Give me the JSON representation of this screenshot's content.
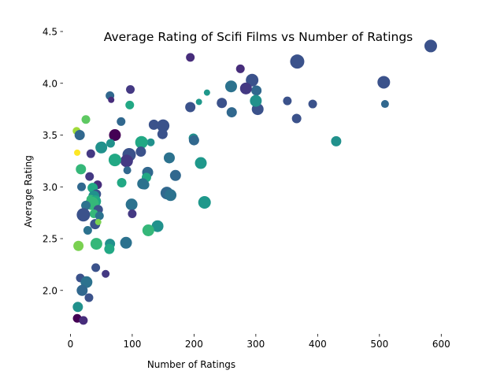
{
  "chart_data": {
    "type": "scatter",
    "title": "Average Rating of Scifi Films vs Number of Ratings",
    "xlabel": "Number of Ratings",
    "ylabel": "Average Rating",
    "xlim": [
      -12,
      620
    ],
    "ylim": [
      1.58,
      4.5
    ],
    "xticks": [
      0,
      100,
      200,
      300,
      400,
      500,
      600
    ],
    "yticks": [
      2.0,
      2.5,
      3.0,
      3.5,
      4.0,
      4.5
    ],
    "ytick_labels": [
      "2.0",
      "2.5",
      "3.0",
      "3.5",
      "4.0",
      "4.5"
    ],
    "grid": false,
    "legend": "none",
    "encoding": "marker size and color vary per point (viridis colormap)",
    "points": [
      {
        "x": 583,
        "y": 4.36,
        "size": 16,
        "color": "#3b528b"
      },
      {
        "x": 507,
        "y": 4.01,
        "size": 16,
        "color": "#3b528b"
      },
      {
        "x": 509,
        "y": 3.8,
        "size": 10,
        "color": "#31688e"
      },
      {
        "x": 430,
        "y": 3.44,
        "size": 13,
        "color": "#21918c"
      },
      {
        "x": 392,
        "y": 3.8,
        "size": 11,
        "color": "#3b528b"
      },
      {
        "x": 367,
        "y": 4.21,
        "size": 18,
        "color": "#3b528b"
      },
      {
        "x": 366,
        "y": 3.66,
        "size": 12,
        "color": "#3b528b"
      },
      {
        "x": 351,
        "y": 3.83,
        "size": 11,
        "color": "#3b528b"
      },
      {
        "x": 303,
        "y": 3.75,
        "size": 15,
        "color": "#3b528b"
      },
      {
        "x": 301,
        "y": 3.93,
        "size": 13,
        "color": "#31688e"
      },
      {
        "x": 300,
        "y": 3.83,
        "size": 15,
        "color": "#21918c"
      },
      {
        "x": 294,
        "y": 4.03,
        "size": 16,
        "color": "#3b528b"
      },
      {
        "x": 284,
        "y": 3.95,
        "size": 15,
        "color": "#443983"
      },
      {
        "x": 275,
        "y": 4.14,
        "size": 11,
        "color": "#472d7b"
      },
      {
        "x": 260,
        "y": 3.97,
        "size": 15,
        "color": "#2c728e"
      },
      {
        "x": 261,
        "y": 3.72,
        "size": 13,
        "color": "#31688e"
      },
      {
        "x": 245,
        "y": 3.81,
        "size": 13,
        "color": "#3b528b"
      },
      {
        "x": 221,
        "y": 3.91,
        "size": 8,
        "color": "#1f988b"
      },
      {
        "x": 208,
        "y": 3.82,
        "size": 8,
        "color": "#1f988b"
      },
      {
        "x": 194,
        "y": 4.25,
        "size": 11,
        "color": "#472d7b"
      },
      {
        "x": 194,
        "y": 3.77,
        "size": 13,
        "color": "#3b528b"
      },
      {
        "x": 199,
        "y": 3.47,
        "size": 12,
        "color": "#21918c"
      },
      {
        "x": 200,
        "y": 3.45,
        "size": 13,
        "color": "#31688e"
      },
      {
        "x": 211,
        "y": 3.23,
        "size": 15,
        "color": "#1f988b"
      },
      {
        "x": 217,
        "y": 2.85,
        "size": 16,
        "color": "#1f988b"
      },
      {
        "x": 170,
        "y": 3.11,
        "size": 14,
        "color": "#31688e"
      },
      {
        "x": 160,
        "y": 3.28,
        "size": 14,
        "color": "#2c728e"
      },
      {
        "x": 156,
        "y": 2.94,
        "size": 16,
        "color": "#31688e"
      },
      {
        "x": 162,
        "y": 2.92,
        "size": 15,
        "color": "#2c728e"
      },
      {
        "x": 150,
        "y": 3.59,
        "size": 16,
        "color": "#3b528b"
      },
      {
        "x": 149,
        "y": 3.51,
        "size": 13,
        "color": "#3b528b"
      },
      {
        "x": 135,
        "y": 3.6,
        "size": 13,
        "color": "#3b528b"
      },
      {
        "x": 130,
        "y": 3.43,
        "size": 10,
        "color": "#21918c"
      },
      {
        "x": 141,
        "y": 2.62,
        "size": 15,
        "color": "#21918c"
      },
      {
        "x": 126,
        "y": 2.58,
        "size": 15,
        "color": "#35b779"
      },
      {
        "x": 115,
        "y": 3.43,
        "size": 16,
        "color": "#22a884"
      },
      {
        "x": 114,
        "y": 3.34,
        "size": 13,
        "color": "#3b528b"
      },
      {
        "x": 125,
        "y": 3.14,
        "size": 14,
        "color": "#31688e"
      },
      {
        "x": 123,
        "y": 3.09,
        "size": 12,
        "color": "#22a884"
      },
      {
        "x": 117,
        "y": 3.03,
        "size": 14,
        "color": "#2c728e"
      },
      {
        "x": 120,
        "y": 3.02,
        "size": 12,
        "color": "#2c728e"
      },
      {
        "x": 97,
        "y": 3.94,
        "size": 11,
        "color": "#443983"
      },
      {
        "x": 96,
        "y": 3.79,
        "size": 11,
        "color": "#22a884"
      },
      {
        "x": 82,
        "y": 3.63,
        "size": 11,
        "color": "#31688e"
      },
      {
        "x": 95,
        "y": 3.31,
        "size": 17,
        "color": "#3b528b"
      },
      {
        "x": 91,
        "y": 3.25,
        "size": 16,
        "color": "#443983"
      },
      {
        "x": 92,
        "y": 3.16,
        "size": 10,
        "color": "#31688e"
      },
      {
        "x": 99,
        "y": 2.83,
        "size": 15,
        "color": "#2c728e"
      },
      {
        "x": 100,
        "y": 2.74,
        "size": 11,
        "color": "#443983"
      },
      {
        "x": 90,
        "y": 2.46,
        "size": 15,
        "color": "#2c728e"
      },
      {
        "x": 83,
        "y": 3.04,
        "size": 12,
        "color": "#22a884"
      },
      {
        "x": 72,
        "y": 3.5,
        "size": 15,
        "color": "#440154"
      },
      {
        "x": 72,
        "y": 3.26,
        "size": 16,
        "color": "#22a884"
      },
      {
        "x": 64,
        "y": 3.88,
        "size": 11,
        "color": "#31688e"
      },
      {
        "x": 66,
        "y": 3.84,
        "size": 8,
        "color": "#472d7b"
      },
      {
        "x": 65,
        "y": 3.42,
        "size": 11,
        "color": "#21918c"
      },
      {
        "x": 50,
        "y": 3.38,
        "size": 15,
        "color": "#21918c"
      },
      {
        "x": 64,
        "y": 2.45,
        "size": 13,
        "color": "#21918c"
      },
      {
        "x": 63,
        "y": 2.4,
        "size": 13,
        "color": "#22a884"
      },
      {
        "x": 57,
        "y": 2.16,
        "size": 10,
        "color": "#443983"
      },
      {
        "x": 25,
        "y": 3.65,
        "size": 11,
        "color": "#5ec962"
      },
      {
        "x": 10,
        "y": 3.54,
        "size": 10,
        "color": "#a0da39"
      },
      {
        "x": 15,
        "y": 3.5,
        "size": 13,
        "color": "#31688e"
      },
      {
        "x": 11,
        "y": 3.33,
        "size": 8,
        "color": "#fde725"
      },
      {
        "x": 33,
        "y": 3.32,
        "size": 11,
        "color": "#443983"
      },
      {
        "x": 17,
        "y": 3.17,
        "size": 13,
        "color": "#35b779"
      },
      {
        "x": 31,
        "y": 3.1,
        "size": 11,
        "color": "#443983"
      },
      {
        "x": 44,
        "y": 3.02,
        "size": 11,
        "color": "#472d7b"
      },
      {
        "x": 18,
        "y": 3.0,
        "size": 11,
        "color": "#31688e"
      },
      {
        "x": 36,
        "y": 2.99,
        "size": 13,
        "color": "#22a884"
      },
      {
        "x": 42,
        "y": 2.93,
        "size": 12,
        "color": "#3b528b"
      },
      {
        "x": 38,
        "y": 2.91,
        "size": 14,
        "color": "#21918c"
      },
      {
        "x": 33,
        "y": 2.88,
        "size": 11,
        "color": "#35b779"
      },
      {
        "x": 40,
        "y": 2.86,
        "size": 15,
        "color": "#22a884"
      },
      {
        "x": 35,
        "y": 2.84,
        "size": 17,
        "color": "#35b779"
      },
      {
        "x": 25,
        "y": 2.82,
        "size": 12,
        "color": "#2c728e"
      },
      {
        "x": 45,
        "y": 2.78,
        "size": 12,
        "color": "#3b528b"
      },
      {
        "x": 38,
        "y": 2.74,
        "size": 11,
        "color": "#35b779"
      },
      {
        "x": 47,
        "y": 2.72,
        "size": 11,
        "color": "#2c728e"
      },
      {
        "x": 21,
        "y": 2.73,
        "size": 17,
        "color": "#3b528b"
      },
      {
        "x": 40,
        "y": 2.64,
        "size": 13,
        "color": "#3b528b"
      },
      {
        "x": 45,
        "y": 2.66,
        "size": 8,
        "color": "#7ad151"
      },
      {
        "x": 28,
        "y": 2.58,
        "size": 11,
        "color": "#2c728e"
      },
      {
        "x": 42,
        "y": 2.45,
        "size": 15,
        "color": "#35b779"
      },
      {
        "x": 13,
        "y": 2.43,
        "size": 13,
        "color": "#7ad151"
      },
      {
        "x": 41,
        "y": 2.22,
        "size": 11,
        "color": "#3b528b"
      },
      {
        "x": 16,
        "y": 2.12,
        "size": 11,
        "color": "#3b528b"
      },
      {
        "x": 26,
        "y": 2.08,
        "size": 15,
        "color": "#2c728e"
      },
      {
        "x": 19,
        "y": 2.0,
        "size": 14,
        "color": "#31688e"
      },
      {
        "x": 30,
        "y": 1.93,
        "size": 11,
        "color": "#3b528b"
      },
      {
        "x": 12,
        "y": 1.84,
        "size": 13,
        "color": "#21918c"
      },
      {
        "x": 11,
        "y": 1.73,
        "size": 11,
        "color": "#440154"
      },
      {
        "x": 21,
        "y": 1.71,
        "size": 11,
        "color": "#472d7b"
      }
    ]
  }
}
